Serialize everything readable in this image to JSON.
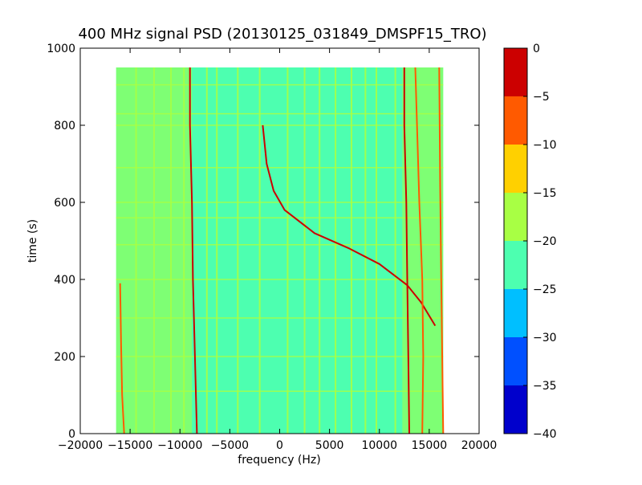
{
  "chart_data": {
    "type": "heatmap",
    "title": "400 MHz signal PSD (20130125_031849_DMSPF15_TRO)",
    "xlabel": "frequency (Hz)",
    "ylabel": "time (s)",
    "xlim": [
      -20000,
      20000
    ],
    "ylim": [
      0,
      1000
    ],
    "x_ticks": [
      -20000,
      -15000,
      -10000,
      -5000,
      0,
      5000,
      10000,
      15000,
      20000
    ],
    "y_ticks": [
      0,
      200,
      400,
      600,
      800,
      1000
    ],
    "data_extent": {
      "x": [
        -16400,
        16400
      ],
      "y": [
        0,
        950
      ]
    },
    "colorbar": {
      "range": [
        -40,
        0
      ],
      "ticks": [
        0,
        -5,
        -10,
        -15,
        -20,
        -25,
        -30,
        -35,
        -40
      ],
      "levels": [
        {
          "min": -40,
          "max": -35,
          "color": "#0000CC"
        },
        {
          "min": -35,
          "max": -30,
          "color": "#0050FF"
        },
        {
          "min": -30,
          "max": -25,
          "color": "#00BFFF"
        },
        {
          "min": -25,
          "max": -20,
          "color": "#4DFFB0"
        },
        {
          "min": -20,
          "max": -15,
          "color": "#A8FF44"
        },
        {
          "min": -15,
          "max": -10,
          "color": "#FFD000"
        },
        {
          "min": -10,
          "max": -5,
          "color": "#FF5A00"
        },
        {
          "min": -5,
          "max": 0,
          "color": "#CC0000"
        }
      ]
    },
    "background_level": -22.5,
    "edge_band_level": -17.5,
    "signal_traces": [
      {
        "points": [
          [
            -15600,
            0
          ],
          [
            -15800,
            100
          ],
          [
            -15900,
            230
          ],
          [
            -16000,
            390
          ]
        ],
        "level": -7.5
      },
      {
        "points": [
          [
            -8300,
            0
          ],
          [
            -8500,
            200
          ],
          [
            -8700,
            400
          ],
          [
            -8800,
            600
          ],
          [
            -9000,
            800
          ],
          [
            -9000,
            950
          ]
        ],
        "level": -2.5
      },
      {
        "points": [
          [
            -1700,
            800
          ],
          [
            -1300,
            700
          ],
          [
            -600,
            630
          ],
          [
            500,
            580
          ],
          [
            3500,
            520
          ],
          [
            7000,
            480
          ],
          [
            10000,
            440
          ],
          [
            12800,
            385
          ],
          [
            14200,
            340
          ],
          [
            15600,
            280
          ]
        ],
        "level": -2.5
      },
      {
        "points": [
          [
            13000,
            0
          ],
          [
            12900,
            200
          ],
          [
            12800,
            400
          ],
          [
            12700,
            600
          ],
          [
            12500,
            800
          ],
          [
            12500,
            950
          ]
        ],
        "level": -2.5
      },
      {
        "points": [
          [
            14300,
            0
          ],
          [
            14400,
            200
          ],
          [
            14300,
            400
          ],
          [
            14000,
            600
          ],
          [
            13600,
            950
          ]
        ],
        "level": -7.5
      },
      {
        "points": [
          [
            16400,
            0
          ],
          [
            16200,
            400
          ],
          [
            16100,
            640
          ],
          [
            16000,
            950
          ]
        ],
        "level": -7.5
      }
    ],
    "horizontal_lines_at": [
      110,
      200,
      300,
      400,
      490,
      560,
      600,
      690,
      800,
      830,
      905
    ],
    "vertical_lines_at": [
      -14400,
      -12600,
      -10900,
      -9600,
      -7300,
      -6300,
      -4200,
      -2000,
      800,
      2500,
      4000,
      5600,
      7200,
      8600,
      9700,
      11600
    ]
  }
}
